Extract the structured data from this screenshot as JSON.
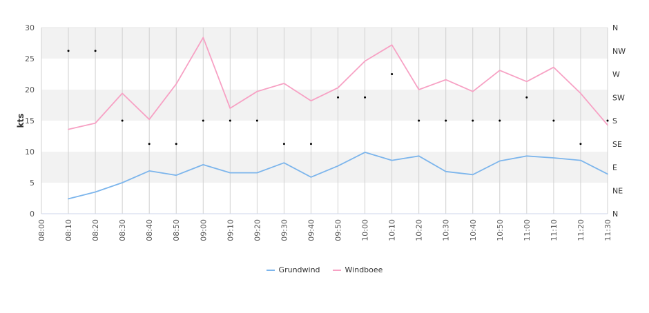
{
  "chart_data": {
    "type": "line",
    "xlabel": "",
    "ylabel": "kts",
    "ylim": [
      0,
      30
    ],
    "yticks": [
      "0",
      "5",
      "10",
      "15",
      "20",
      "25",
      "30"
    ],
    "x_ticks": [
      "08:00",
      "08:10",
      "08:20",
      "08:30",
      "08:40",
      "08:50",
      "09:00",
      "09:10",
      "09:20",
      "09:30",
      "09:40",
      "09:50",
      "10:00",
      "10:10",
      "10:20",
      "10:30",
      "10:40",
      "10:50",
      "11:00",
      "11:10",
      "11:20",
      "11:30"
    ],
    "direction_ticks": [
      "N",
      "NE",
      "E",
      "SE",
      "S",
      "SW",
      "W",
      "NW",
      "N"
    ],
    "grid": true,
    "legend_position": "bottom",
    "series": [
      {
        "name": "Grundwind",
        "color": "#7cb5ec",
        "x": [
          "08:10",
          "08:20",
          "08:30",
          "08:40",
          "08:50",
          "09:00",
          "09:10",
          "09:20",
          "09:30",
          "09:40",
          "09:50",
          "10:00",
          "10:10",
          "10:20",
          "10:30",
          "10:40",
          "10:50",
          "11:00",
          "11:10",
          "11:20",
          "11:30"
        ],
        "values": [
          2.4,
          3.5,
          5.0,
          6.9,
          6.2,
          7.9,
          6.6,
          6.6,
          8.2,
          5.9,
          7.7,
          9.9,
          8.6,
          9.3,
          6.8,
          6.3,
          8.5,
          9.3,
          9.0,
          8.6,
          6.4
        ]
      },
      {
        "name": "Windboee",
        "color": "#f7a1c4",
        "x": [
          "08:10",
          "08:20",
          "08:30",
          "08:40",
          "08:50",
          "09:00",
          "09:10",
          "09:20",
          "09:30",
          "09:40",
          "09:50",
          "10:00",
          "10:10",
          "10:20",
          "10:30",
          "10:40",
          "10:50",
          "11:00",
          "11:10",
          "11:20",
          "11:30"
        ],
        "values": [
          13.6,
          14.6,
          19.4,
          15.2,
          20.9,
          28.4,
          17.0,
          19.7,
          21.0,
          18.2,
          20.3,
          24.6,
          27.2,
          20.0,
          21.6,
          19.7,
          23.1,
          21.3,
          23.6,
          19.4,
          14.3
        ]
      },
      {
        "name": "",
        "kind": "direction",
        "color": "#000000",
        "x": [
          "08:10",
          "08:20",
          "08:30",
          "08:40",
          "08:50",
          "09:00",
          "09:10",
          "09:20",
          "09:30",
          "09:40",
          "09:50",
          "10:00",
          "10:10",
          "10:20",
          "10:30",
          "10:40",
          "10:50",
          "11:00",
          "11:10",
          "11:20",
          "11:30"
        ],
        "values": [
          "NW",
          "NW",
          "S",
          "SE",
          "SE",
          "S",
          "S",
          "S",
          "SE",
          "SE",
          "SW",
          "SW",
          "W",
          "S",
          "S",
          "S",
          "S",
          "SW",
          "S",
          "SE",
          "S"
        ]
      }
    ]
  }
}
